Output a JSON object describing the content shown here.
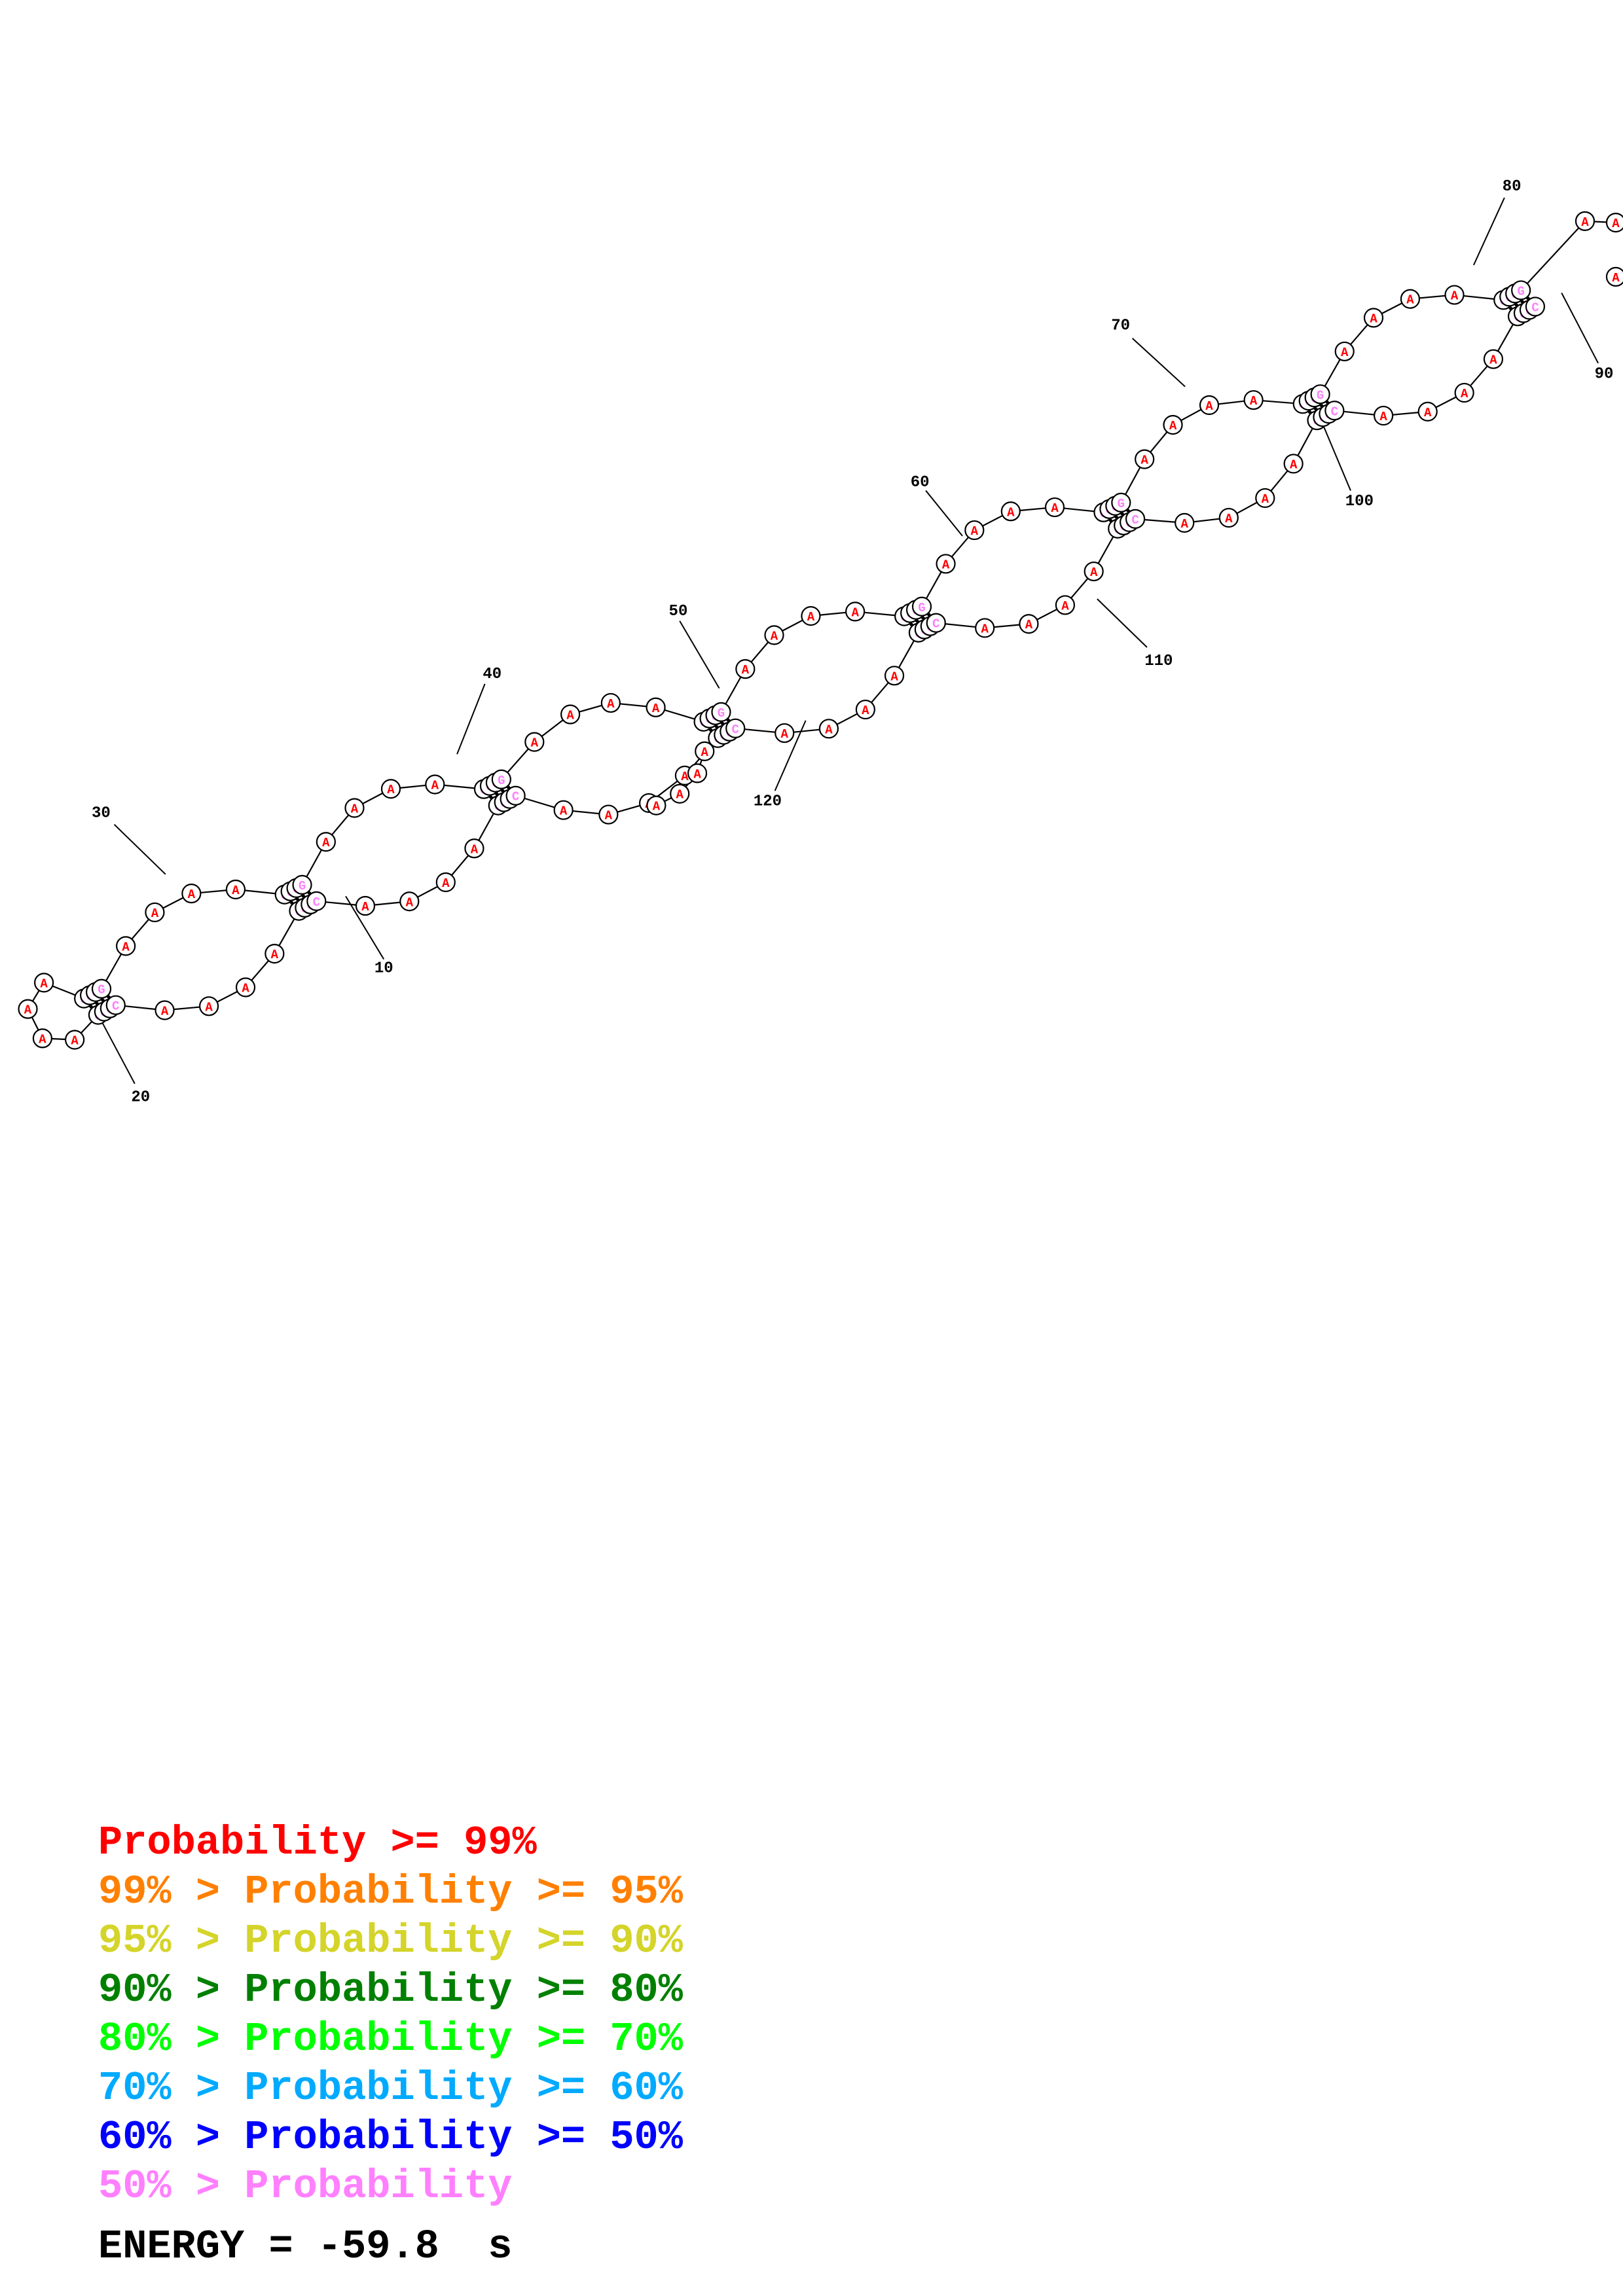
{
  "colors": {
    "a_base": "#ff0000",
    "g_base": "#ff80ff",
    "c_base": "#ff80ff",
    "outline": "#000000",
    "label": "#000000"
  },
  "sequence": "CGCCAAAACGCCAAAAGGCGAAAACGCCAAAAGGCGAAAACGCCAAAAGGCGAAAACGCCAAAAGGCGAAAACGCCAAAAGGCGAAAACGCCAAAAGGCGAAAACGCCAAAAGGCGAAAA",
  "position_labels": [
    "10",
    "20",
    "30",
    "40",
    "50",
    "60",
    "70",
    "80",
    "90",
    "100",
    "110",
    "120"
  ],
  "legend": [
    {
      "prefix": "",
      "text": "Probability >= 99%",
      "color": "#ff0000"
    },
    {
      "prefix": "99% > ",
      "text": "Probability >= 95%",
      "color": "#ff8000"
    },
    {
      "prefix": "95% > ",
      "text": "Probability >= 90%",
      "color": "#d4d42a"
    },
    {
      "prefix": "90% > ",
      "text": "Probability >= 80%",
      "color": "#008000"
    },
    {
      "prefix": "80% > ",
      "text": "Probability >= 70%",
      "color": "#00ff00"
    },
    {
      "prefix": "70% > ",
      "text": "Probability >= 60%",
      "color": "#00aaff"
    },
    {
      "prefix": "60% > ",
      "text": "Probability >= 50%",
      "color": "#0000ff"
    },
    {
      "prefix": "50% > ",
      "text": "Probability",
      "color": "#ff80ff"
    }
  ],
  "energy": "ENERGY = -59.8  s"
}
